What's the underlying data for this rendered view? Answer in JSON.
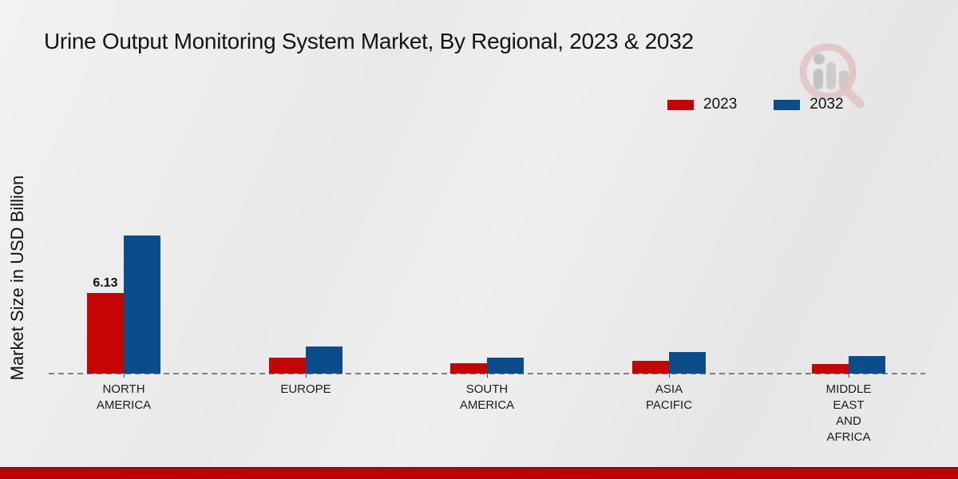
{
  "chart_data": {
    "type": "bar",
    "title": "Urine Output Monitoring System Market, By Regional, 2023 & 2032",
    "xlabel": "",
    "ylabel": "Market Size in USD Billion",
    "categories": [
      "NORTH AMERICA",
      "EUROPE",
      "SOUTH AMERICA",
      "ASIA PACIFIC",
      "MIDDLE EAST AND AFRICA"
    ],
    "category_label_lines": [
      [
        "NORTH",
        "AMERICA"
      ],
      [
        "EUROPE"
      ],
      [
        "SOUTH",
        "AMERICA"
      ],
      [
        "ASIA",
        "PACIFIC"
      ],
      [
        "MIDDLE",
        "EAST",
        "AND",
        "AFRICA"
      ]
    ],
    "series": [
      {
        "name": "2023",
        "color": "#c50404",
        "values": [
          6.13,
          1.21,
          0.76,
          0.97,
          0.73
        ],
        "data_labels": [
          "6.13",
          "",
          "",
          "",
          ""
        ]
      },
      {
        "name": "2032",
        "color": "#0b4d8a",
        "values": [
          10.5,
          2.06,
          1.21,
          1.64,
          1.33
        ],
        "data_labels": [
          "",
          "",
          "",
          "",
          ""
        ]
      }
    ],
    "legend_position": "top-right",
    "grid": false,
    "baseline_style": "dashed",
    "ylim": [
      0,
      11
    ],
    "y_axis_ticks_visible": false
  },
  "icons": {
    "watermark": "magnifier-bar-chart-watermark"
  },
  "colors": {
    "series_2023": "#c50404",
    "series_2032": "#0b4d8a",
    "footer_band": "#c00000",
    "baseline": "#7f7f7f",
    "background": "#eaeaea"
  }
}
